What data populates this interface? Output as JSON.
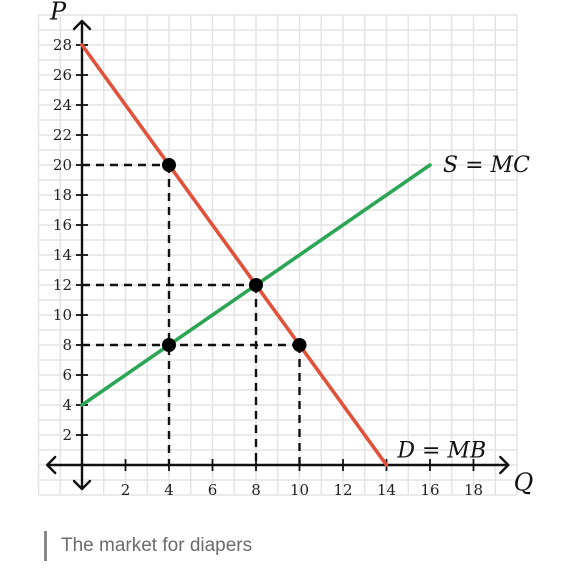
{
  "caption": "The market for diapers",
  "chart_data": {
    "type": "line",
    "title": "",
    "xlabel": "Q",
    "ylabel": "P",
    "xlim": [
      0,
      20
    ],
    "ylim": [
      0,
      30
    ],
    "x_ticks": [
      2,
      4,
      6,
      8,
      10,
      12,
      14,
      16,
      18
    ],
    "y_ticks": [
      2,
      4,
      6,
      8,
      10,
      12,
      14,
      16,
      18,
      20,
      22,
      24,
      26,
      28
    ],
    "grid": true,
    "series": [
      {
        "name": "S = MC",
        "color": "#2ca555",
        "points": [
          [
            0,
            4
          ],
          [
            16,
            20
          ]
        ]
      },
      {
        "name": "D = MB",
        "color": "#e0523a",
        "points": [
          [
            0,
            28
          ],
          [
            14,
            0
          ]
        ]
      }
    ],
    "highlight_points": [
      {
        "x": 4,
        "y": 20
      },
      {
        "x": 8,
        "y": 12
      },
      {
        "x": 4,
        "y": 8
      },
      {
        "x": 10,
        "y": 8
      }
    ],
    "reference_lines": [
      {
        "x": 4,
        "y": 20
      },
      {
        "x": 8,
        "y": 12
      },
      {
        "x": 10,
        "y": 8
      }
    ]
  }
}
